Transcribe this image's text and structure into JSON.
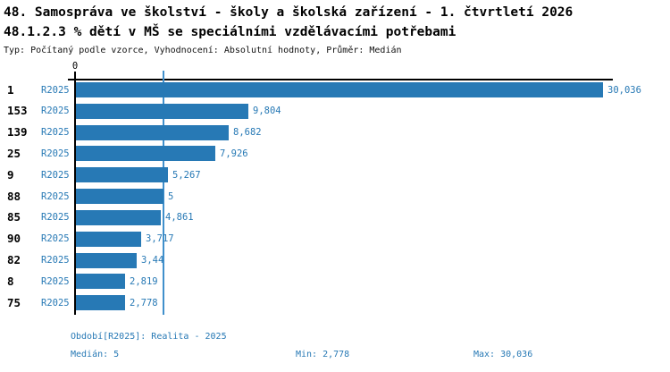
{
  "header": {
    "title_line1": "48. Samospráva ve školství - školy a školská zařízení - 1. čtvrtletí 2026",
    "title_line2": "48.1.2.3 % dětí v MŠ se speciálními vzdělávacími potřebami",
    "meta": "Typ: Počítaný podle vzorce, Vyhodnocení: Absolutní hodnoty, Průměr: Medián"
  },
  "chart_data": {
    "type": "bar",
    "orientation": "horizontal",
    "title": "48.1.2.3 % dětí v MŠ se speciálními vzdělávacími potřebami",
    "axis_zero_label": "0",
    "series_name": "R2025",
    "categories": [
      "1",
      "153",
      "139",
      "25",
      "9",
      "88",
      "85",
      "90",
      "82",
      "8",
      "75"
    ],
    "values": [
      30.036,
      9.804,
      8.682,
      7.926,
      5.267,
      5,
      4.861,
      3.717,
      3.44,
      2.819,
      2.778
    ],
    "value_labels": [
      "30,036",
      "9,804",
      "8,682",
      "7,926",
      "5,267",
      "5",
      "4,861",
      "3,717",
      "3,44",
      "2,819",
      "2,778"
    ],
    "xlim": [
      0,
      30.036
    ],
    "median_value": 5,
    "grid": false,
    "legend_position": "none",
    "bar_color": "#2779b5",
    "median_line_color": "#4090cc",
    "label_color": "#2779b5"
  },
  "footer": {
    "period_label": "Období[R2025]: Realita - 2025",
    "median_label": "Medián: 5",
    "min_label": "Min: 2,778",
    "max_label": "Max: 30,036"
  }
}
